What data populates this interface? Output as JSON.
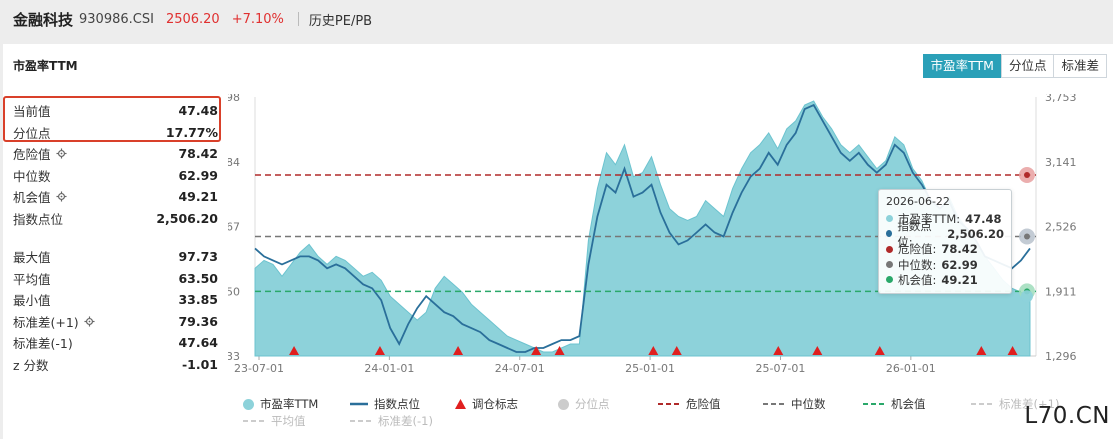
{
  "header": {
    "name": "金融科技",
    "code": "930986.CSI",
    "price": "2506.20",
    "change": "+7.10%",
    "history": "历史PE/PB"
  },
  "card": {
    "title": "市盈率TTM",
    "tabs": [
      "市盈率TTM",
      "分位点",
      "标准差"
    ]
  },
  "stats": {
    "current_label": "当前值",
    "current_value": "47.48",
    "pct_label": "分位点",
    "pct_value": "17.77%",
    "danger_label": "危险值",
    "danger_value": "78.42",
    "median_label": "中位数",
    "median_value": "62.99",
    "opportunity_label": "机会值",
    "opportunity_value": "49.21",
    "index_label": "指数点位",
    "index_value": "2,506.20",
    "max_label": "最大值",
    "max_value": "97.73",
    "avg_label": "平均值",
    "avg_value": "63.50",
    "min_label": "最小值",
    "min_value": "33.85",
    "std_plus_label": "标准差(+1)",
    "std_plus_value": "79.36",
    "std_minus_label": "标准差(-1)",
    "std_minus_value": "47.64",
    "z_label": "z 分数",
    "z_value": "-1.01"
  },
  "chart_data": {
    "type": "area",
    "x_ticks": [
      "23-07-01",
      "24-01-01",
      "24-07-01",
      "25-01-01",
      "25-07-01",
      "26-01-01"
    ],
    "y_left_ticks": [
      "98",
      "84",
      "67",
      "50",
      "33"
    ],
    "y_right_ticks": [
      "3,753",
      "3,141",
      "2,526",
      "1,911",
      "1,296"
    ],
    "y_left_range": [
      33,
      98
    ],
    "y_right_range": [
      1296,
      3753
    ],
    "danger": 78.42,
    "median": 62.99,
    "opportunity": 49.21,
    "pe_series": [
      55,
      57,
      56,
      53,
      56,
      59,
      61,
      58,
      56,
      58,
      57,
      55,
      53,
      54,
      52,
      48,
      46,
      44,
      42,
      44,
      50,
      53,
      51,
      49,
      46,
      44,
      42,
      40,
      38,
      37,
      36,
      35,
      34,
      34,
      35,
      36,
      36,
      62,
      75,
      84,
      81,
      86,
      78,
      79,
      83,
      76,
      70,
      68,
      67,
      68,
      72,
      70,
      68,
      75,
      80,
      84,
      86,
      89,
      85,
      90,
      92,
      96,
      97,
      93,
      90,
      86,
      84,
      86,
      83,
      80,
      82,
      88,
      86,
      80,
      77,
      72,
      70,
      73,
      68,
      65,
      62,
      58,
      55,
      52,
      50,
      49,
      48
    ],
    "index_series": [
      60,
      58,
      57,
      56,
      57,
      58,
      58,
      57,
      55,
      56,
      55,
      53,
      51,
      50,
      47,
      40,
      36,
      41,
      45,
      48,
      46,
      44,
      43,
      41,
      40,
      39,
      37,
      36,
      35,
      34,
      34,
      35,
      35,
      36,
      37,
      37,
      38,
      56,
      68,
      76,
      74,
      80,
      73,
      74,
      76,
      69,
      64,
      61,
      62,
      64,
      66,
      64,
      63,
      69,
      74,
      78,
      80,
      84,
      81,
      86,
      89,
      95,
      96,
      92,
      88,
      84,
      82,
      84,
      81,
      79,
      81,
      86,
      84,
      79,
      76,
      72,
      70,
      72,
      67,
      65,
      62,
      58,
      57,
      56,
      55,
      57,
      60
    ],
    "signals": [
      0.05,
      0.16,
      0.26,
      0.36,
      0.39,
      0.51,
      0.54,
      0.67,
      0.72,
      0.8,
      0.93,
      0.97
    ]
  },
  "tooltip": {
    "date": "2026-06-22",
    "pe_label": "市盈率TTM:",
    "pe_value": "47.48",
    "index_label": "指数点位:",
    "index_value": "2,506.20",
    "danger_label": "危险值:",
    "danger_value": "78.42",
    "median_label": "中位数:",
    "median_value": "62.99",
    "opp_label": "机会值:",
    "opp_value": "49.21"
  },
  "legend": {
    "pe": "市盈率TTM",
    "index": "指数点位",
    "signal": "调仓标志",
    "pct": "分位点",
    "danger": "危险值",
    "median": "中位数",
    "opportunity": "机会值",
    "std_plus": "标准差(+1)",
    "avg": "平均值",
    "std_minus": "标准差(-1)"
  },
  "colors": {
    "accent": "#2aa0b8",
    "area": "#8dd2da",
    "index_line": "#2a6f9a",
    "danger": "#b02a2a",
    "median": "#777777",
    "opportunity": "#2aa86a",
    "signal": "#e01f1f",
    "highlight": "#d9402a"
  },
  "watermark": "L70.CN"
}
